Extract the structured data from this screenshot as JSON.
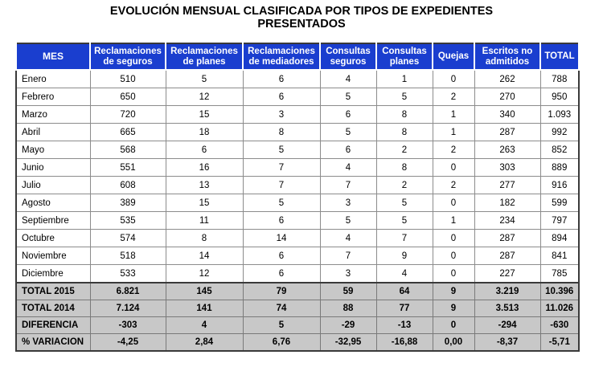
{
  "title": {
    "line1": "EVOLUCIÓN MENSUAL CLASIFICADA POR TIPOS DE EXPEDIENTES",
    "line2": "PRESENTADOS"
  },
  "table": {
    "headers": [
      {
        "line1": "MES",
        "line2": ""
      },
      {
        "line1": "Reclamaciones",
        "line2": "de seguros"
      },
      {
        "line1": "Reclamaciones",
        "line2": "de planes"
      },
      {
        "line1": "Reclamaciones",
        "line2": "de mediadores"
      },
      {
        "line1": "Consultas",
        "line2": "seguros"
      },
      {
        "line1": "Consultas",
        "line2": "planes"
      },
      {
        "line1": "Quejas",
        "line2": ""
      },
      {
        "line1": "Escritos no",
        "line2": "admitidos"
      },
      {
        "line1": "TOTAL",
        "line2": ""
      }
    ],
    "rows": [
      [
        "Enero",
        "510",
        "5",
        "6",
        "4",
        "1",
        "0",
        "262",
        "788"
      ],
      [
        "Febrero",
        "650",
        "12",
        "6",
        "5",
        "5",
        "2",
        "270",
        "950"
      ],
      [
        "Marzo",
        "720",
        "15",
        "3",
        "6",
        "8",
        "1",
        "340",
        "1.093"
      ],
      [
        "Abril",
        "665",
        "18",
        "8",
        "5",
        "8",
        "1",
        "287",
        "992"
      ],
      [
        "Mayo",
        "568",
        "6",
        "5",
        "6",
        "2",
        "2",
        "263",
        "852"
      ],
      [
        "Junio",
        "551",
        "16",
        "7",
        "4",
        "8",
        "0",
        "303",
        "889"
      ],
      [
        "Julio",
        "608",
        "13",
        "7",
        "7",
        "2",
        "2",
        "277",
        "916"
      ],
      [
        "Agosto",
        "389",
        "15",
        "5",
        "3",
        "5",
        "0",
        "182",
        "599"
      ],
      [
        "Septiembre",
        "535",
        "11",
        "6",
        "5",
        "5",
        "1",
        "234",
        "797"
      ],
      [
        "Octubre",
        "574",
        "8",
        "14",
        "4",
        "7",
        "0",
        "287",
        "894"
      ],
      [
        "Noviembre",
        "518",
        "14",
        "6",
        "7",
        "9",
        "0",
        "287",
        "841"
      ],
      [
        "Diciembre",
        "533",
        "12",
        "6",
        "3",
        "4",
        "0",
        "227",
        "785"
      ]
    ],
    "summary": [
      [
        "TOTAL 2015",
        "6.821",
        "145",
        "79",
        "59",
        "64",
        "9",
        "3.219",
        "10.396"
      ],
      [
        "TOTAL 2014",
        "7.124",
        "141",
        "74",
        "88",
        "77",
        "9",
        "3.513",
        "11.026"
      ],
      [
        "DIFERENCIA",
        "-303",
        "4",
        "5",
        "-29",
        "-13",
        "0",
        "-294",
        "-630"
      ],
      [
        "% VARIACION",
        "-4,25",
        "2,84",
        "6,76",
        "-32,95",
        "-16,88",
        "0,00",
        "-8,37",
        "-5,71"
      ]
    ]
  },
  "colors": {
    "header_bg": "#1a3ecf",
    "header_text": "#ffffff",
    "summary_bg": "#c8c8c8"
  }
}
